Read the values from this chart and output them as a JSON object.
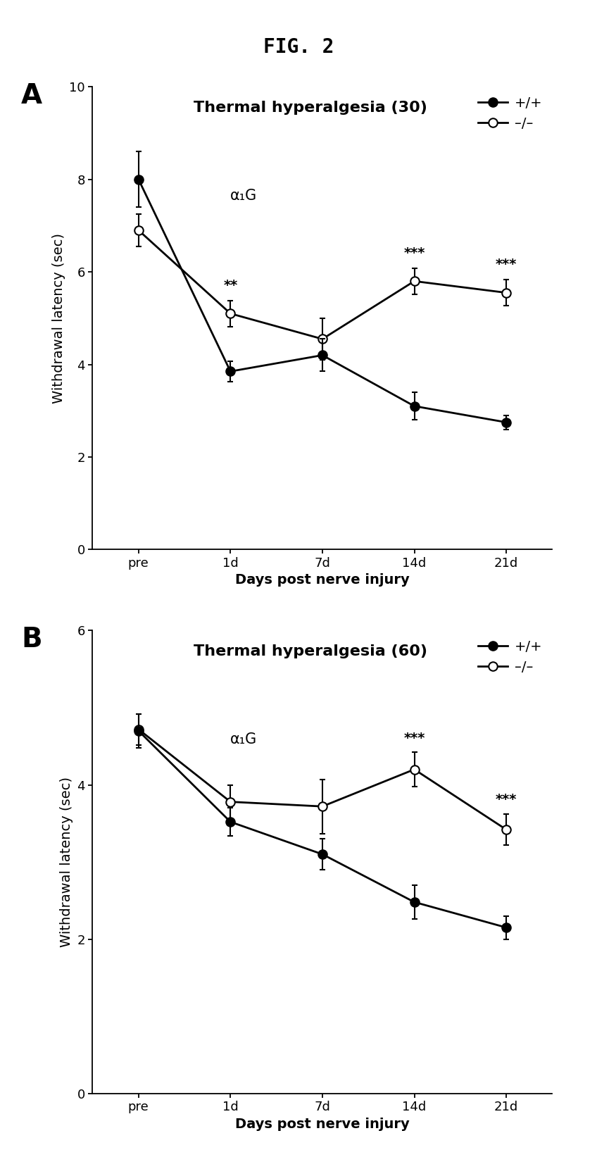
{
  "fig_title": "FIG. 2",
  "panel_A": {
    "title": "Thermal hyperalgesia (30)",
    "subtitle": "α₁G",
    "xlabel": "Days post nerve injury",
    "ylabel": "Withdrawal latency (sec)",
    "ylim": [
      0,
      10
    ],
    "yticks": [
      0,
      2,
      4,
      6,
      8,
      10
    ],
    "xtick_labels": [
      "pre",
      "1d",
      "7d",
      "14d",
      "21d"
    ],
    "wt_y": [
      8.0,
      3.85,
      4.2,
      3.1,
      2.75
    ],
    "wt_yerr": [
      0.6,
      0.22,
      0.35,
      0.3,
      0.15
    ],
    "ko_y": [
      6.9,
      5.1,
      4.55,
      5.8,
      5.55
    ],
    "ko_yerr": [
      0.35,
      0.28,
      0.45,
      0.28,
      0.28
    ],
    "sig_labels": [
      "",
      "**",
      "",
      "***",
      "***"
    ],
    "sig_x_offset": [
      0,
      0,
      0,
      0,
      0
    ]
  },
  "panel_B": {
    "title": "Thermal hyperalgesia (60)",
    "subtitle": "α₁G",
    "xlabel": "Days post nerve injury",
    "ylabel": "Withdrawal latency (sec)",
    "ylim": [
      0,
      6
    ],
    "yticks": [
      0,
      2,
      4,
      6
    ],
    "xtick_labels": [
      "pre",
      "1d",
      "7d",
      "14d",
      "21d"
    ],
    "wt_y": [
      4.7,
      3.52,
      3.1,
      2.48,
      2.15
    ],
    "wt_yerr": [
      0.22,
      0.18,
      0.2,
      0.22,
      0.15
    ],
    "ko_y": [
      4.72,
      3.78,
      3.72,
      4.2,
      3.42
    ],
    "ko_yerr": [
      0.2,
      0.22,
      0.35,
      0.22,
      0.2
    ],
    "sig_labels": [
      "",
      "",
      "",
      "***",
      "***"
    ],
    "sig_x_offset": [
      0,
      0,
      0,
      0,
      0
    ]
  },
  "wt_color": "#000000",
  "ko_color": "#000000",
  "wt_markerfacecolor": "#000000",
  "ko_markerfacecolor": "#ffffff",
  "line_width": 2.0,
  "marker_size": 9,
  "legend_wt_label": "+/+",
  "legend_ko_label": "–/–",
  "title_fontsize": 20,
  "panel_title_fontsize": 16,
  "subtitle_fontsize": 15,
  "axis_label_fontsize": 14,
  "tick_fontsize": 13,
  "sig_fontsize": 14,
  "panel_label_fontsize": 28,
  "legend_fontsize": 14
}
